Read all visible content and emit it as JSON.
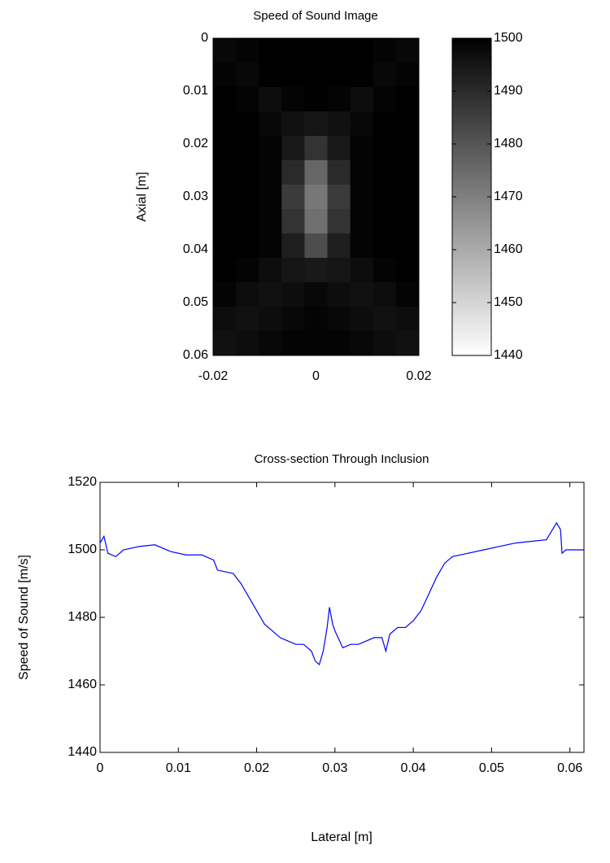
{
  "chart_data": [
    {
      "type": "image",
      "title": "Speed of Sound Image",
      "ylabel": "Axial [m]",
      "xlim": [
        -0.02,
        0.02
      ],
      "xticks": [
        -0.02,
        0,
        0.02
      ],
      "ylim": [
        0,
        0.06
      ],
      "yticks": [
        0,
        0.01,
        0.02,
        0.03,
        0.04,
        0.05,
        0.06
      ],
      "y_reversed": true,
      "colormap": "gray",
      "colormap_reversed": true,
      "clim": [
        1440,
        1500
      ],
      "cticks": [
        1440,
        1450,
        1460,
        1470,
        1480,
        1490,
        1500
      ],
      "z": [
        [
          1498,
          1499,
          1500,
          1500,
          1500,
          1500,
          1500,
          1499,
          1498
        ],
        [
          1499,
          1498,
          1500,
          1500,
          1500,
          1500,
          1500,
          1498,
          1499
        ],
        [
          1500,
          1499,
          1497,
          1499,
          1500,
          1499,
          1497,
          1499,
          1500
        ],
        [
          1500,
          1500,
          1498,
          1496,
          1495,
          1496,
          1498,
          1500,
          1500
        ],
        [
          1500,
          1500,
          1499,
          1494,
          1488,
          1494,
          1499,
          1500,
          1500
        ],
        [
          1500,
          1500,
          1499,
          1490,
          1476,
          1490,
          1499,
          1500,
          1500
        ],
        [
          1500,
          1500,
          1499,
          1486,
          1472,
          1486,
          1499,
          1500,
          1500
        ],
        [
          1500,
          1500,
          1499,
          1488,
          1474,
          1488,
          1499,
          1500,
          1500
        ],
        [
          1500,
          1500,
          1499,
          1493,
          1482,
          1493,
          1499,
          1500,
          1500
        ],
        [
          1500,
          1499,
          1497,
          1495,
          1494,
          1495,
          1497,
          1499,
          1500
        ],
        [
          1499,
          1497,
          1496,
          1497,
          1498,
          1497,
          1496,
          1497,
          1499
        ],
        [
          1497,
          1496,
          1497,
          1498,
          1499,
          1498,
          1497,
          1496,
          1497
        ],
        [
          1496,
          1497,
          1498,
          1499,
          1499,
          1499,
          1498,
          1497,
          1496
        ]
      ]
    },
    {
      "type": "line",
      "title": "Cross-section Through Inclusion",
      "xlabel": "Lateral [m]",
      "ylabel": "Speed of Sound [m/s]",
      "xlim": [
        0,
        0.0618
      ],
      "xticks": [
        0,
        0.01,
        0.02,
        0.03,
        0.04,
        0.05,
        0.06
      ],
      "ylim": [
        1440,
        1520
      ],
      "yticks": [
        1440,
        1460,
        1480,
        1500,
        1520
      ],
      "color": "#0000ff",
      "x": [
        0,
        0.0005,
        0.001,
        0.002,
        0.003,
        0.005,
        0.007,
        0.009,
        0.011,
        0.013,
        0.0145,
        0.015,
        0.017,
        0.018,
        0.019,
        0.02,
        0.021,
        0.022,
        0.023,
        0.024,
        0.025,
        0.026,
        0.027,
        0.0275,
        0.028,
        0.0285,
        0.029,
        0.0293,
        0.0297,
        0.03,
        0.031,
        0.032,
        0.033,
        0.034,
        0.035,
        0.036,
        0.0365,
        0.037,
        0.038,
        0.039,
        0.04,
        0.041,
        0.042,
        0.043,
        0.044,
        0.045,
        0.047,
        0.049,
        0.051,
        0.053,
        0.055,
        0.057,
        0.0583,
        0.0588,
        0.059,
        0.0595,
        0.0618
      ],
      "values": [
        1502,
        1504,
        1499,
        1498,
        1500,
        1501,
        1501.5,
        1499.5,
        1498.5,
        1498.5,
        1497,
        1494,
        1493,
        1490,
        1486,
        1482,
        1478,
        1476,
        1474,
        1473,
        1472,
        1472,
        1470,
        1467,
        1466,
        1470,
        1477,
        1483,
        1478,
        1476,
        1471,
        1472,
        1472,
        1473,
        1474,
        1474,
        1470,
        1475,
        1477,
        1477,
        1479,
        1482,
        1487,
        1492,
        1496,
        1498,
        1499,
        1500,
        1501,
        1502,
        1502.5,
        1503,
        1508,
        1506,
        1499,
        1500,
        1500
      ]
    }
  ]
}
